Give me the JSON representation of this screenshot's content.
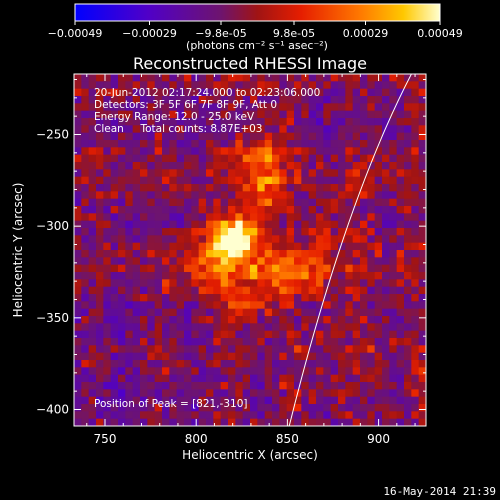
{
  "colorbar": {
    "tick_labels": [
      "-0.00049",
      "-0.00029",
      "-9.8e-05",
      "9.8e-05",
      "0.00029",
      "0.00049"
    ],
    "tick_values": [
      -0.00049,
      -0.00029,
      -9.8e-05,
      9.8e-05,
      0.00029,
      0.00049
    ],
    "range": [
      -0.00049,
      0.00049
    ],
    "unit_label": "(photons cm⁻² s⁻¹ asec⁻²)"
  },
  "chart_data": {
    "type": "heatmap",
    "title": "Reconstructed RHESSI Image",
    "xlabel": "Heliocentric X (arcsec)",
    "ylabel": "Heliocentric Y (arcsec)",
    "xlim": [
      733,
      926
    ],
    "ylim": [
      -409,
      -217
    ],
    "xticks": [
      750,
      800,
      850,
      900
    ],
    "yticks": [
      -250,
      -300,
      -350,
      -400
    ],
    "annotations": [
      "20-Jun-2012 02:17:24.000 to 02:23:06.000",
      "Detectors: 3F 5F 6F 7F 8F 9F, Att 0",
      "Energy Range: 12.0 - 25.0 keV",
      "Clean     Total counts: 8.87E+03"
    ],
    "peak_label": "Position of Peak = [821,-310]",
    "peak": [
      821,
      -310
    ],
    "sources": [
      {
        "x": 821,
        "y": -306,
        "sx": 9,
        "sy": 9,
        "amp": 1.0
      },
      {
        "x": 836,
        "y": -270,
        "sx": 8,
        "sy": 18,
        "amp": 0.6
      },
      {
        "x": 845,
        "y": -325,
        "sx": 13,
        "sy": 9,
        "amp": 0.55
      },
      {
        "x": 808,
        "y": -322,
        "sx": 14,
        "sy": 12,
        "amp": 0.45
      },
      {
        "x": 827,
        "y": -343,
        "sx": 10,
        "sy": 6,
        "amp": 0.4
      },
      {
        "x": 868,
        "y": -310,
        "sx": 6,
        "sy": 20,
        "amp": 0.3
      }
    ],
    "limb_points": [
      [
        918,
        -217
      ],
      [
        883,
        -300
      ],
      [
        851,
        -409
      ]
    ]
  },
  "footer": {
    "date": "16-May-2014 21:39"
  }
}
